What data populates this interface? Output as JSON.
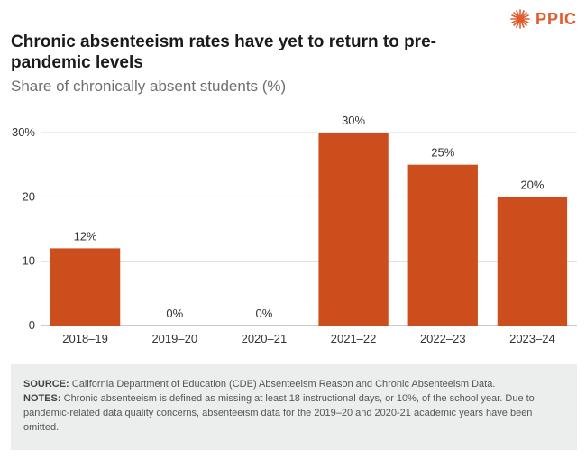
{
  "brand": {
    "name": "PPIC",
    "color": "#e05a2b",
    "icon": "starburst-logo-icon"
  },
  "title": "Chronic absenteeism rates have yet to return to pre-pandemic levels",
  "subtitle": "Share of chronically absent students (%)",
  "chart_data": {
    "type": "bar",
    "categories": [
      "2018–19",
      "2019–20",
      "2020–21",
      "2021–22",
      "2022–23",
      "2023–24"
    ],
    "values": [
      12,
      0,
      0,
      30,
      25,
      20
    ],
    "data_labels": [
      "12%",
      "0%",
      "0%",
      "30%",
      "25%",
      "20%"
    ],
    "ylim": [
      0,
      30
    ],
    "yticks": [
      0,
      10,
      20,
      30
    ],
    "ytick_labels": [
      "0",
      "10",
      "20",
      "30%"
    ],
    "grid": true,
    "bar_color": "#cc4e1c"
  },
  "footer": {
    "source_label": "SOURCE:",
    "source_text": "California Department of Education (CDE) Absenteeism Reason and Chronic Absenteeism Data.",
    "notes_label": "NOTES:",
    "notes_text": "Chronic absenteeism is defined as missing at least 18 instructional days, or 10%, of the school year. Due to pandemic-related data quality concerns, absenteeism data for the 2019–20 and 2020-21 academic years have been omitted."
  }
}
